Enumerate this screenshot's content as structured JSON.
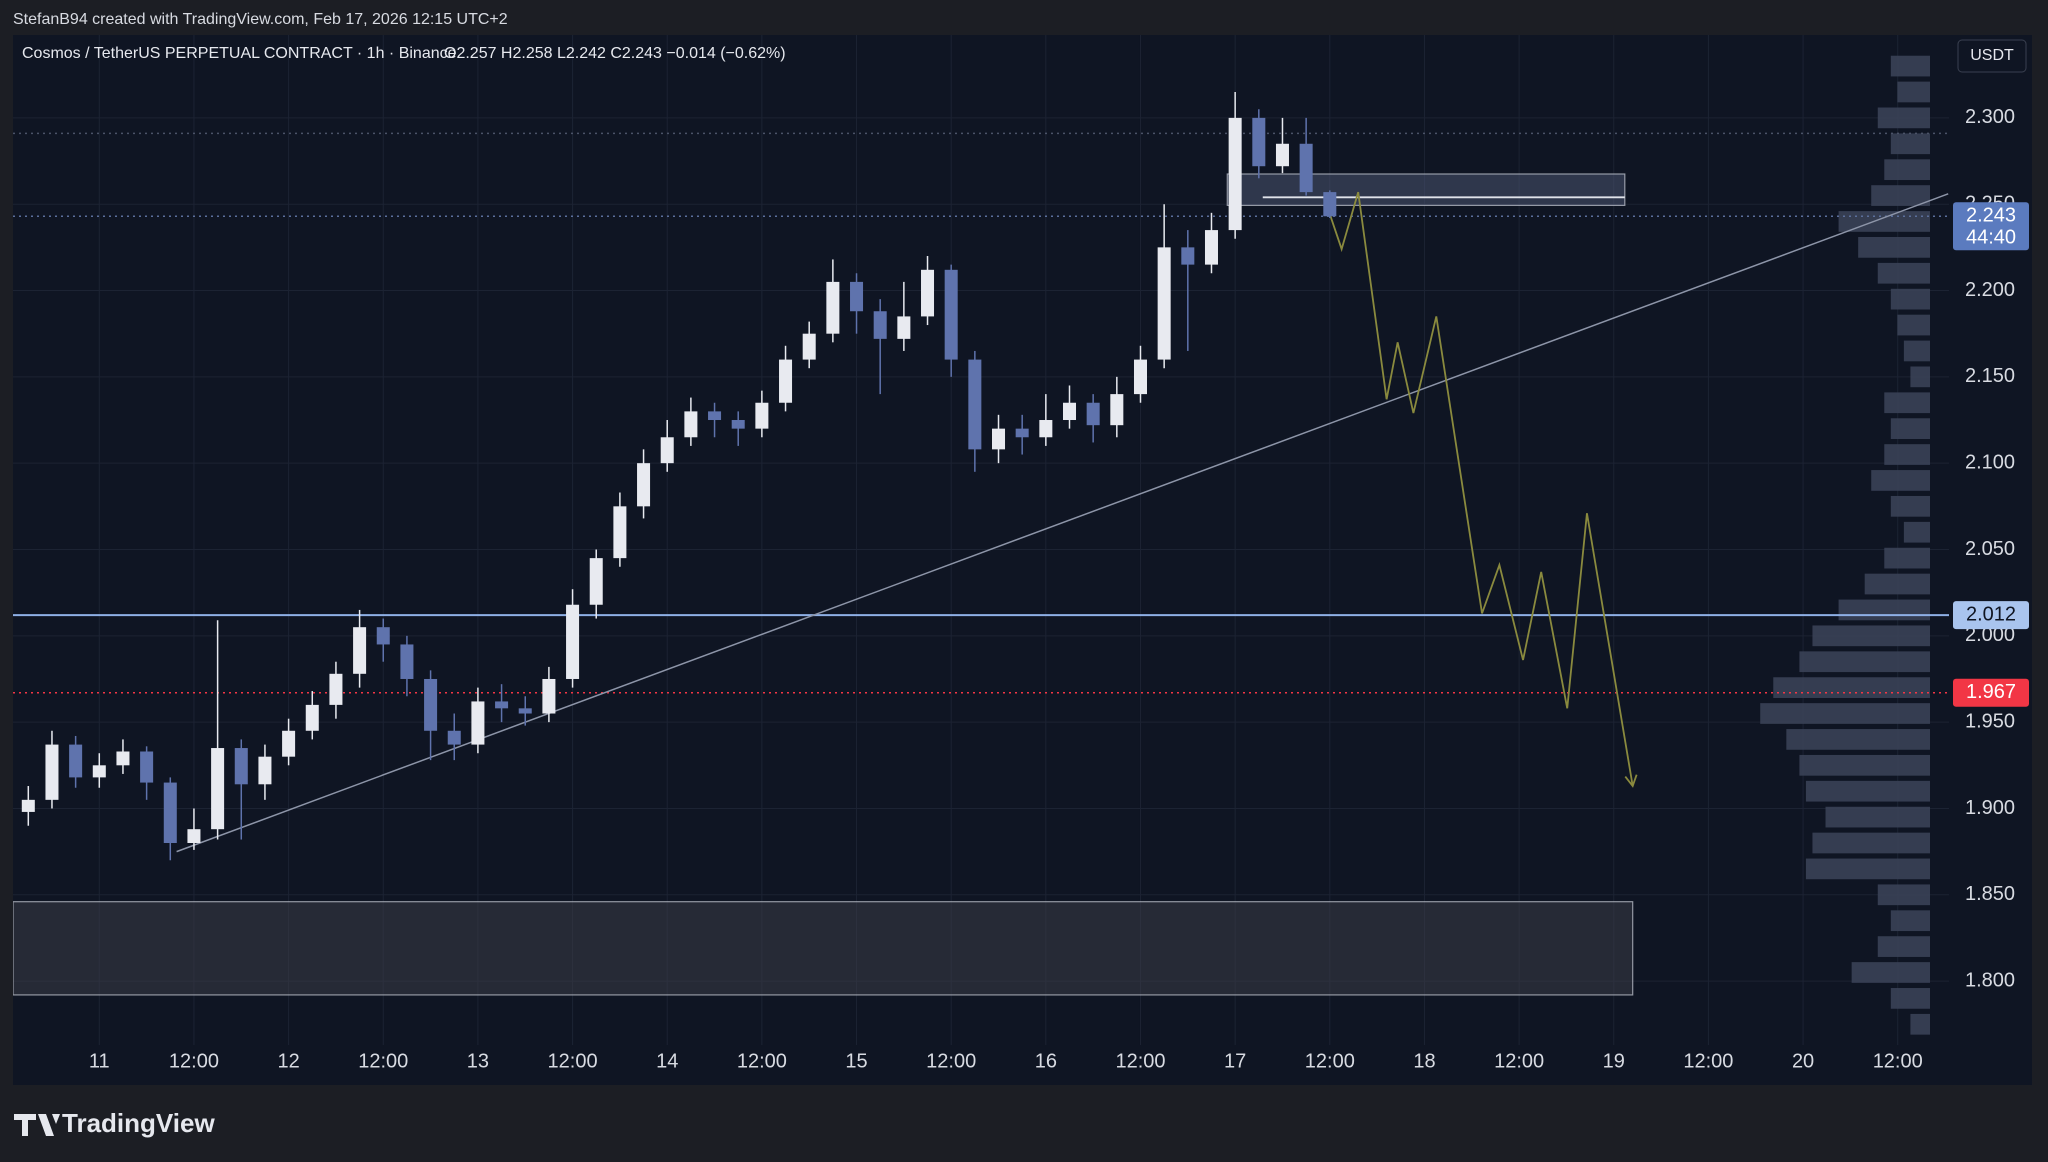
{
  "header": {
    "credit": "StefanB94 created with TradingView.com, Feb 17, 2026 12:15 UTC+2",
    "brand": "TradingView"
  },
  "chart_data": {
    "type": "candlestick",
    "title": "Cosmos / TetherUS PERPETUAL CONTRACT · 1h · Binance",
    "ohlc_text": "O2.257  H2.258  L2.242  C2.243  −0.014 (−0.62%)",
    "currency": "USDT",
    "up_color": "#e8eaf0",
    "down_color": "#5f73ad",
    "x": [
      -9,
      -6,
      -3,
      0,
      3,
      6,
      9,
      12,
      15,
      18,
      21,
      24,
      27,
      30,
      33,
      36,
      39,
      42,
      45,
      48,
      51,
      54,
      57,
      60,
      63,
      66,
      69,
      72,
      75,
      78,
      81,
      84,
      87,
      90,
      93,
      96,
      99,
      102,
      105,
      108,
      111,
      114,
      117,
      120,
      123,
      126,
      129,
      132,
      135,
      138,
      141,
      144,
      147,
      150,
      153,
      156
    ],
    "open": [
      1.898,
      1.905,
      1.937,
      1.918,
      1.925,
      1.933,
      1.915,
      1.88,
      1.888,
      1.935,
      1.914,
      1.93,
      1.945,
      1.96,
      1.978,
      2.005,
      1.995,
      1.975,
      1.945,
      1.937,
      1.962,
      1.958,
      1.955,
      1.975,
      2.018,
      2.045,
      2.075,
      2.1,
      2.115,
      2.13,
      2.125,
      2.12,
      2.135,
      2.16,
      2.175,
      2.205,
      2.188,
      2.172,
      2.185,
      2.212,
      2.16,
      2.108,
      2.12,
      2.115,
      2.125,
      2.135,
      2.122,
      2.14,
      2.16,
      2.225,
      2.215,
      2.235,
      2.3,
      2.272,
      2.285,
      2.257
    ],
    "high": [
      1.913,
      1.945,
      1.942,
      1.932,
      1.94,
      1.936,
      1.918,
      1.9,
      2.009,
      1.94,
      1.937,
      1.952,
      1.968,
      1.985,
      2.015,
      2.01,
      2.0,
      1.98,
      1.955,
      1.97,
      1.972,
      1.965,
      1.982,
      2.027,
      2.05,
      2.083,
      2.108,
      2.125,
      2.138,
      2.135,
      2.13,
      2.142,
      2.168,
      2.182,
      2.218,
      2.21,
      2.195,
      2.205,
      2.22,
      2.215,
      2.165,
      2.128,
      2.128,
      2.14,
      2.145,
      2.14,
      2.15,
      2.168,
      2.25,
      2.235,
      2.245,
      2.315,
      2.305,
      2.3,
      2.3,
      2.258
    ],
    "low": [
      1.89,
      1.9,
      1.912,
      1.912,
      1.92,
      1.905,
      1.87,
      1.876,
      1.882,
      1.882,
      1.905,
      1.925,
      1.94,
      1.952,
      1.97,
      1.985,
      1.965,
      1.928,
      1.928,
      1.932,
      1.95,
      1.948,
      1.95,
      1.97,
      2.01,
      2.04,
      2.068,
      2.095,
      2.11,
      2.115,
      2.11,
      2.115,
      2.13,
      2.155,
      2.17,
      2.175,
      2.14,
      2.165,
      2.18,
      2.15,
      2.095,
      2.1,
      2.105,
      2.11,
      2.12,
      2.112,
      2.115,
      2.135,
      2.155,
      2.165,
      2.21,
      2.23,
      2.265,
      2.268,
      2.255,
      2.242
    ],
    "close": [
      1.905,
      1.937,
      1.918,
      1.925,
      1.933,
      1.915,
      1.88,
      1.888,
      1.935,
      1.914,
      1.93,
      1.945,
      1.96,
      1.978,
      2.005,
      1.995,
      1.975,
      1.945,
      1.937,
      1.962,
      1.958,
      1.955,
      1.975,
      2.018,
      2.045,
      2.075,
      2.1,
      2.115,
      2.13,
      2.125,
      2.12,
      2.135,
      2.16,
      2.175,
      2.205,
      2.188,
      2.172,
      2.185,
      2.212,
      2.16,
      2.108,
      2.12,
      2.115,
      2.125,
      2.135,
      2.122,
      2.14,
      2.16,
      2.225,
      2.215,
      2.235,
      2.3,
      2.272,
      2.285,
      2.257,
      2.243
    ],
    "xlim": [
      -10.94,
      234.5
    ],
    "ylim": [
      1.763,
      2.348
    ],
    "xticks": [
      {
        "value": 0,
        "label": "11"
      },
      {
        "value": 12,
        "label": "12:00"
      },
      {
        "value": 24,
        "label": "12"
      },
      {
        "value": 36,
        "label": "12:00"
      },
      {
        "value": 48,
        "label": "13"
      },
      {
        "value": 60,
        "label": "12:00"
      },
      {
        "value": 72,
        "label": "14"
      },
      {
        "value": 84,
        "label": "12:00"
      },
      {
        "value": 96,
        "label": "15"
      },
      {
        "value": 108,
        "label": "12:00"
      },
      {
        "value": 120,
        "label": "16"
      },
      {
        "value": 132,
        "label": "12:00"
      },
      {
        "value": 144,
        "label": "17"
      },
      {
        "value": 156,
        "label": "12:00"
      },
      {
        "value": 168,
        "label": "18"
      },
      {
        "value": 180,
        "label": "12:00"
      },
      {
        "value": 192,
        "label": "19"
      },
      {
        "value": 204,
        "label": "12:00"
      },
      {
        "value": 216,
        "label": "20"
      },
      {
        "value": 228,
        "label": "12:00"
      }
    ],
    "yticks": [
      {
        "value": 1.8,
        "label": "1.800"
      },
      {
        "value": 1.85,
        "label": "1.850"
      },
      {
        "value": 1.9,
        "label": "1.900"
      },
      {
        "value": 1.95,
        "label": "1.950"
      },
      {
        "value": 2.0,
        "label": "2.000"
      },
      {
        "value": 2.05,
        "label": "2.050"
      },
      {
        "value": 2.1,
        "label": "2.100"
      },
      {
        "value": 2.15,
        "label": "2.150"
      },
      {
        "value": 2.2,
        "label": "2.200"
      },
      {
        "value": 2.25,
        "label": "2.250"
      },
      {
        "value": 2.3,
        "label": "2.300"
      }
    ],
    "grid": true,
    "hlines": [
      {
        "value": 2.291,
        "color": "#4b5368",
        "style": "dotted"
      },
      {
        "value": 2.243,
        "color": "#5b6f9c",
        "style": "dotted"
      },
      {
        "value": 2.012,
        "color": "#8fb0e6",
        "style": "solid"
      },
      {
        "value": 1.967,
        "color": "#f23645",
        "style": "dotted"
      }
    ],
    "zones": [
      {
        "x": [
          143,
          193.4
        ],
        "y": [
          2.2493,
          2.2675
        ],
        "color": "#4a5470"
      },
      {
        "x": [
          -10.94,
          194.4
        ],
        "y": [
          1.792,
          1.846
        ],
        "color": "#3a3d47"
      }
    ],
    "segments": [
      {
        "x": [
          147.5,
          193.4
        ],
        "y": [
          2.254,
          2.254
        ],
        "color": "#e0e3ea"
      }
    ],
    "trendline": {
      "x": [
        9.8,
        234.4
      ],
      "y": [
        1.875,
        2.256
      ],
      "color": "#8d95a8"
    },
    "projection": {
      "x": [
        155.5,
        157.5,
        159.6,
        163.2,
        164.6,
        166.6,
        169.5,
        175.3,
        177.5,
        180.5,
        182.8,
        186.1,
        188.6,
        194.4
      ],
      "y": [
        2.251,
        2.224,
        2.257,
        2.137,
        2.17,
        2.129,
        2.185,
        2.013,
        2.041,
        1.986,
        2.037,
        1.958,
        2.071,
        1.913
      ],
      "color": "#8a8a3e"
    },
    "volume_profile": {
      "color": "#3c4459",
      "prices": [
        2.33,
        2.315,
        2.3,
        2.285,
        2.27,
        2.255,
        2.24,
        2.225,
        2.21,
        2.195,
        2.18,
        2.165,
        2.15,
        2.135,
        2.12,
        2.105,
        2.09,
        2.075,
        2.06,
        2.045,
        2.03,
        2.015,
        2.0,
        1.985,
        1.97,
        1.955,
        1.94,
        1.925,
        1.91,
        1.895,
        1.88,
        1.865,
        1.85,
        1.835,
        1.82,
        1.805,
        1.79,
        1.775
      ],
      "values": [
        30,
        25,
        40,
        30,
        35,
        45,
        70,
        55,
        40,
        30,
        25,
        20,
        15,
        35,
        30,
        35,
        45,
        30,
        20,
        35,
        50,
        70,
        90,
        100,
        120,
        130,
        110,
        100,
        95,
        80,
        90,
        95,
        40,
        30,
        40,
        60,
        30,
        15
      ]
    },
    "price_labels": [
      {
        "value": 2.243,
        "label": "2.243",
        "sub": "44:40",
        "color": "#5b7bbf",
        "text_color": "#ffffff"
      },
      {
        "value": 2.012,
        "label": "2.012",
        "color": "#a9c4ee",
        "text_color": "#0f1421"
      },
      {
        "value": 1.967,
        "label": "1.967",
        "color": "#f23645",
        "text_color": "#ffffff"
      }
    ]
  }
}
